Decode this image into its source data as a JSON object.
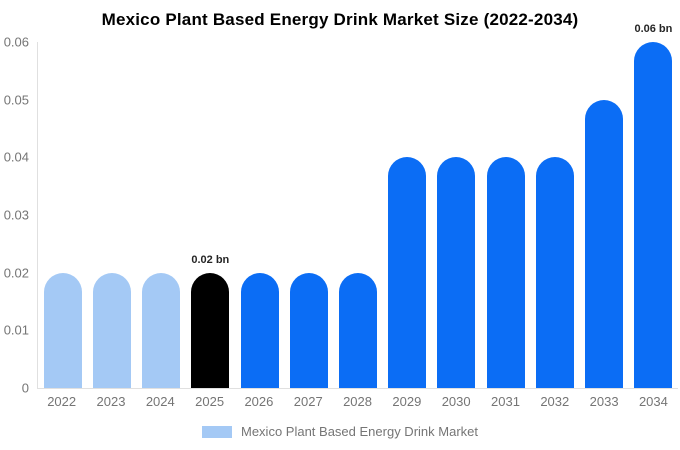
{
  "title": "Mexico Plant Based Energy Drink Market Size (2022-2034)",
  "chart_data": {
    "type": "bar",
    "title": "Mexico Plant Based Energy Drink Market Size (2022-2034)",
    "categories": [
      "2022",
      "2023",
      "2024",
      "2025",
      "2026",
      "2027",
      "2028",
      "2029",
      "2030",
      "2031",
      "2032",
      "2033",
      "2034"
    ],
    "values": [
      0.02,
      0.02,
      0.02,
      0.02,
      0.02,
      0.02,
      0.02,
      0.04,
      0.04,
      0.04,
      0.04,
      0.05,
      0.06
    ],
    "unit": "bn",
    "bar_colors": [
      "#a4c9f5",
      "#a4c9f5",
      "#a4c9f5",
      "#000000",
      "#0b6df5",
      "#0b6df5",
      "#0b6df5",
      "#0b6df5",
      "#0b6df5",
      "#0b6df5",
      "#0b6df5",
      "#0b6df5",
      "#0b6df5"
    ],
    "annotations": [
      {
        "index": 3,
        "category": "2025",
        "text": "0.02 bn"
      },
      {
        "index": 12,
        "category": "2034",
        "text": "0.06 bn"
      }
    ],
    "xlabel": "",
    "ylabel": "",
    "ylim": [
      0,
      0.06
    ],
    "yticks": [
      0,
      0.01,
      0.02,
      0.03,
      0.04,
      0.05,
      0.06
    ],
    "ytick_labels": [
      "0",
      "0.01",
      "0.02",
      "0.03",
      "0.04",
      "0.05",
      "0.06"
    ],
    "grid": false,
    "legend": {
      "position": "bottom",
      "entries": [
        {
          "label": "Mexico Plant Based Energy Drink Market",
          "color": "#a4c9f5"
        }
      ]
    }
  },
  "colors": {
    "background": "#ffffff",
    "axis_line": "#e0e0e0",
    "tick_text": "#757575",
    "annotation_text": "#262626",
    "title_text": "#000000"
  }
}
